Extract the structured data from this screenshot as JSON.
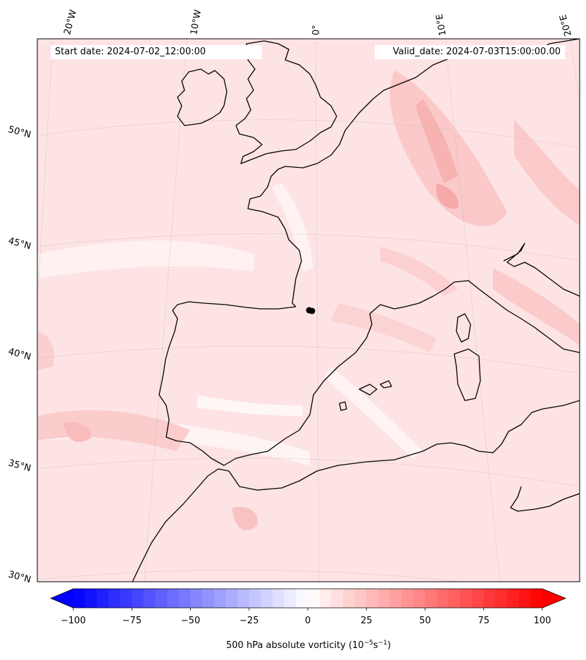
{
  "header": {
    "start_date": "Start date: 2024-07-02_12:00:00",
    "valid_date": "Valid_date: 2024-07-03T15:00:00.00"
  },
  "map": {
    "projection": "conic",
    "background_color": "#fde3e3",
    "longitude_labels": [
      "20°W",
      "10°W",
      "0°",
      "10°E",
      "20°E"
    ],
    "latitude_labels": [
      "50°N",
      "45°N",
      "40°N",
      "35°N",
      "30°N"
    ],
    "marker": {
      "name": "black-dot-marker",
      "color": "#000000"
    }
  },
  "colorbar": {
    "tick_labels": [
      "−100",
      "−75",
      "−50",
      "−25",
      "0",
      "25",
      "50",
      "75",
      "100"
    ],
    "label": "500 hPa absolute vorticity (10",
    "label_exp1": "−5",
    "label_mid": "s",
    "label_exp2": "−1",
    "label_end": ")",
    "min_color": "#0000ff",
    "max_color": "#ff0000",
    "center_color": "#ffffff"
  }
}
